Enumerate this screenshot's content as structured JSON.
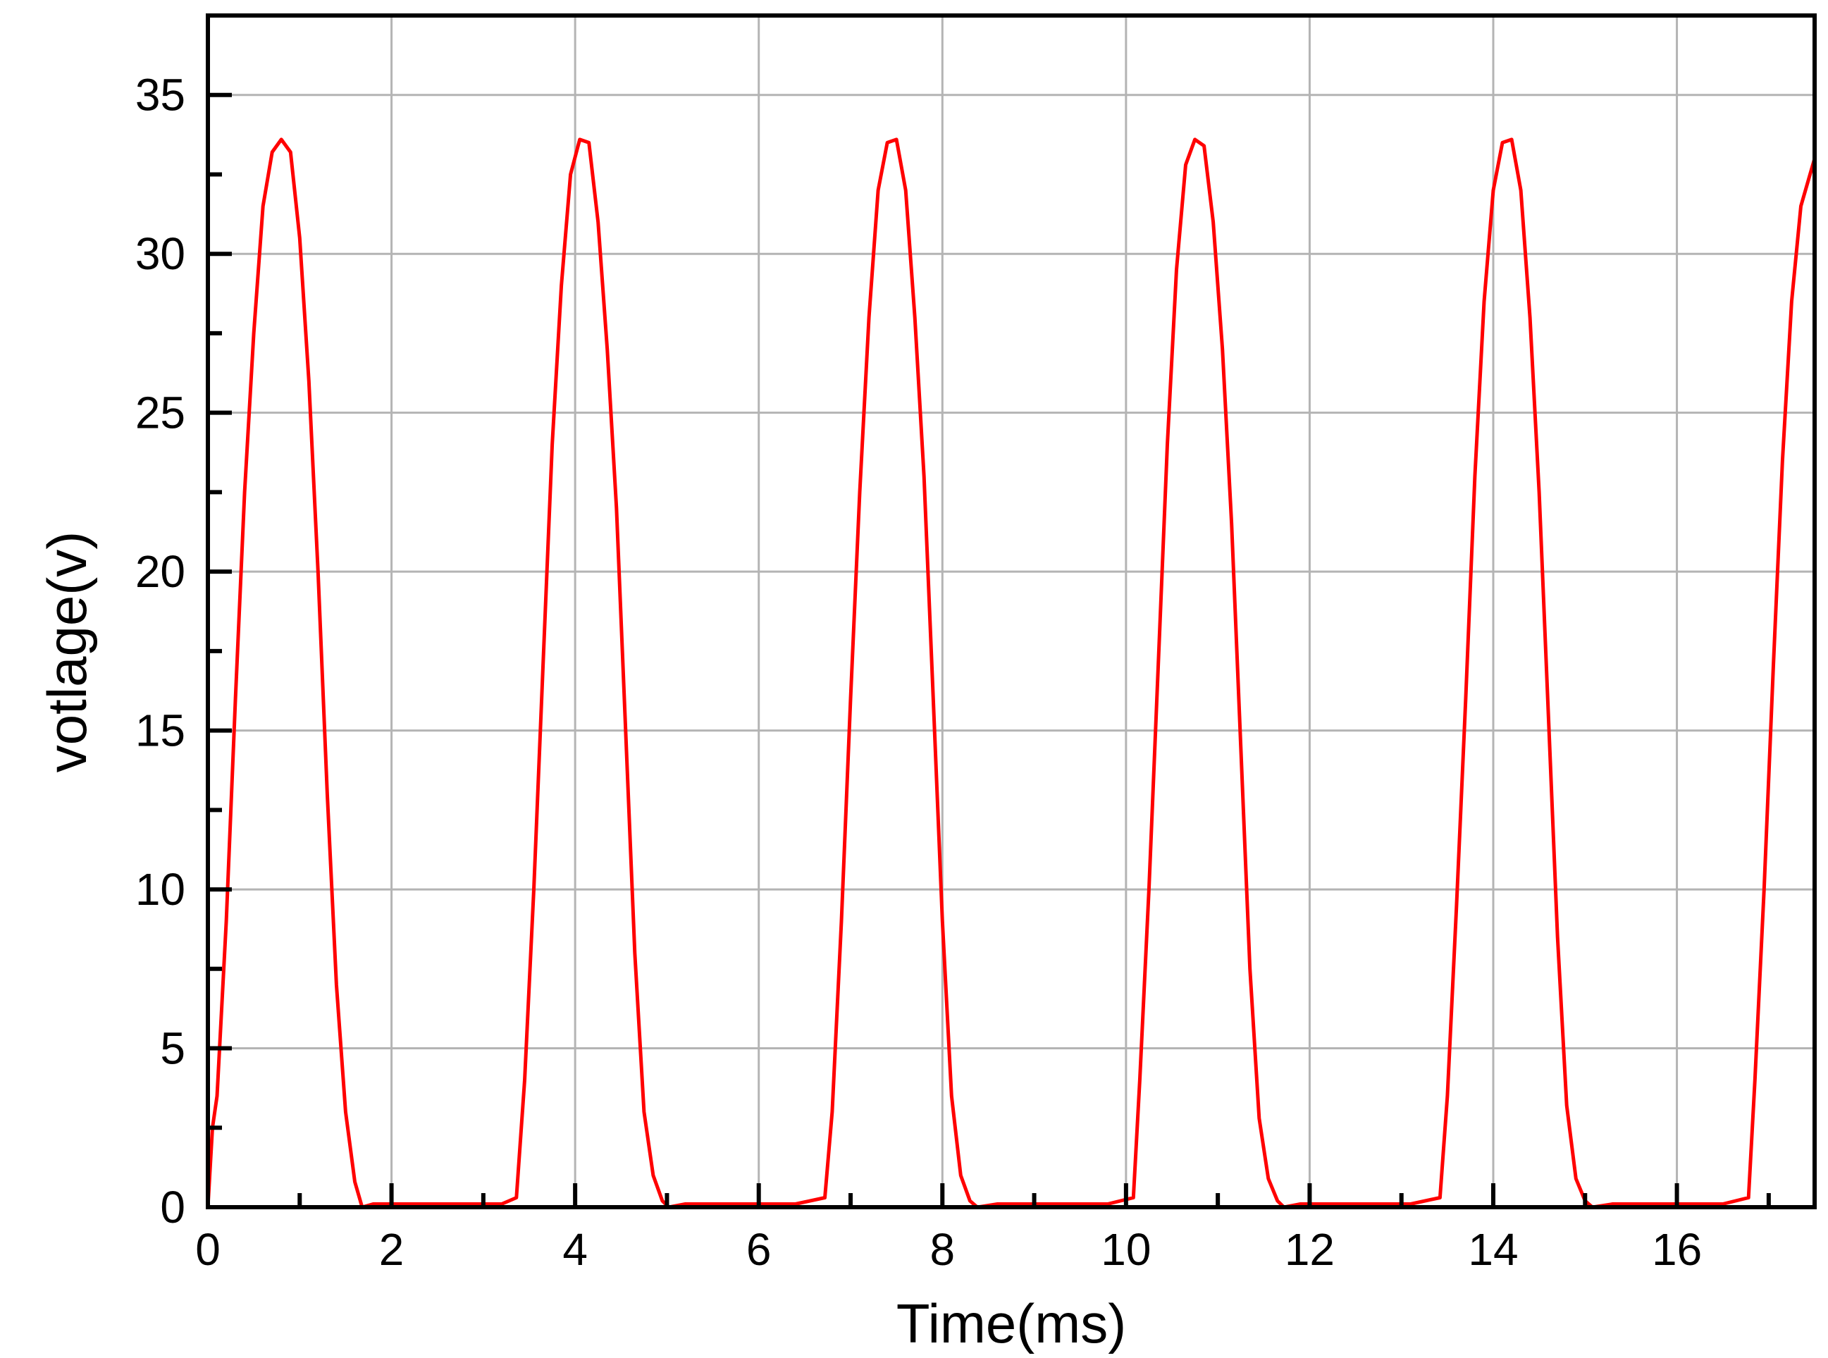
{
  "chart_data": {
    "type": "line",
    "title": "",
    "xlabel": "Time(ms)",
    "ylabel": "votlage(v)",
    "xlim": [
      0,
      17.5
    ],
    "ylim": [
      0,
      37.5
    ],
    "x_ticks": [
      0,
      2,
      4,
      6,
      8,
      10,
      12,
      14,
      16
    ],
    "y_ticks": [
      0,
      5,
      10,
      15,
      20,
      25,
      30,
      35
    ],
    "x_tick_labels": [
      "0",
      "2",
      "4",
      "6",
      "8",
      "10",
      "12",
      "14",
      "16"
    ],
    "y_tick_labels": [
      "0",
      "5",
      "10",
      "15",
      "20",
      "25",
      "30",
      "35"
    ],
    "grid": true,
    "legend": "none",
    "colors": {
      "series": "#ff0000",
      "grid": "#b4b4b4",
      "axes": "#000000"
    },
    "series": [
      {
        "color": "#ff0000",
        "x": [
          0,
          0.05,
          0.1,
          0.2,
          0.3,
          0.4,
          0.5,
          0.6,
          0.7,
          0.8,
          0.9,
          1.0,
          1.1,
          1.2,
          1.3,
          1.4,
          1.5,
          1.6,
          1.68,
          1.8,
          2.0,
          2.4,
          2.8,
          3.2,
          3.36,
          3.45,
          3.55,
          3.65,
          3.75,
          3.85,
          3.95,
          4.05,
          4.15,
          4.25,
          4.35,
          4.45,
          4.55,
          4.65,
          4.75,
          4.85,
          4.95,
          5.02,
          5.2,
          5.6,
          6.0,
          6.4,
          6.72,
          6.8,
          6.9,
          7.0,
          7.1,
          7.2,
          7.3,
          7.4,
          7.5,
          7.6,
          7.7,
          7.8,
          7.9,
          8.0,
          8.1,
          8.2,
          8.3,
          8.38,
          8.6,
          9.0,
          9.4,
          9.8,
          10.08,
          10.15,
          10.25,
          10.35,
          10.45,
          10.55,
          10.65,
          10.75,
          10.85,
          10.95,
          11.05,
          11.15,
          11.25,
          11.35,
          11.45,
          11.55,
          11.65,
          11.72,
          11.9,
          12.3,
          12.7,
          13.1,
          13.42,
          13.5,
          13.6,
          13.7,
          13.8,
          13.9,
          14.0,
          14.1,
          14.2,
          14.3,
          14.4,
          14.5,
          14.6,
          14.7,
          14.8,
          14.9,
          15.0,
          15.08,
          15.3,
          15.7,
          16.1,
          16.5,
          16.78,
          16.85,
          16.95,
          17.05,
          17.15,
          17.25,
          17.35,
          17.5
        ],
        "y": [
          0,
          2.5,
          3.5,
          9.0,
          16.0,
          22.5,
          27.5,
          31.5,
          33.2,
          33.6,
          33.2,
          30.5,
          26.0,
          20.0,
          13.0,
          7.0,
          3.0,
          0.8,
          0,
          0.1,
          0.1,
          0.1,
          0.1,
          0.1,
          0.3,
          4.0,
          10.0,
          17.0,
          24.0,
          29.0,
          32.5,
          33.6,
          33.5,
          31.0,
          27.0,
          22.0,
          15.0,
          8.0,
          3.0,
          1.0,
          0.2,
          0,
          0.1,
          0.1,
          0.1,
          0.1,
          0.3,
          3.0,
          9.0,
          16.0,
          22.5,
          28.0,
          32.0,
          33.5,
          33.6,
          32.0,
          28.0,
          23.0,
          16.0,
          9.0,
          3.5,
          1.0,
          0.2,
          0,
          0.1,
          0.1,
          0.1,
          0.1,
          0.3,
          4.0,
          10.0,
          17.0,
          24.0,
          29.5,
          32.8,
          33.6,
          33.4,
          31.0,
          27.0,
          21.5,
          14.5,
          7.5,
          2.8,
          0.9,
          0.2,
          0,
          0.1,
          0.1,
          0.1,
          0.1,
          0.3,
          3.5,
          9.5,
          16.0,
          23.0,
          28.5,
          32.0,
          33.5,
          33.6,
          32.0,
          28.0,
          22.5,
          15.5,
          8.5,
          3.2,
          0.9,
          0.2,
          0,
          0.1,
          0.1,
          0.1,
          0.1,
          0.3,
          4.0,
          10.0,
          17.0,
          23.5,
          28.5,
          31.5,
          33.0
        ]
      }
    ]
  }
}
